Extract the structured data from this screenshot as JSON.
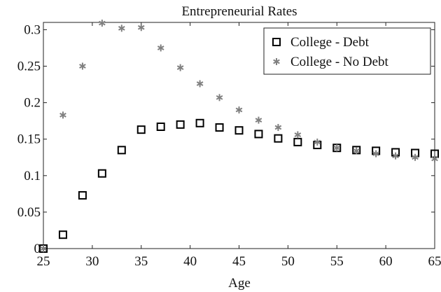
{
  "chart_data": {
    "type": "scatter",
    "title": "Entrepreneurial Rates",
    "xlabel": "Age",
    "ylabel": "",
    "xlim": [
      25,
      65
    ],
    "ylim": [
      0,
      0.31
    ],
    "xticks": [
      "25",
      "30",
      "35",
      "40",
      "45",
      "50",
      "55",
      "60",
      "65"
    ],
    "yticks": [
      "0",
      "0.05",
      "0.1",
      "0.15",
      "0.2",
      "0.25",
      "0.3"
    ],
    "legend_position": "top-right",
    "grid": false,
    "series": [
      {
        "name": "College - Debt",
        "marker": "square",
        "color": "#000000",
        "x": [
          25,
          27,
          29,
          31,
          33,
          35,
          37,
          39,
          41,
          43,
          45,
          47,
          49,
          51,
          53,
          55,
          57,
          59,
          61,
          63,
          65
        ],
        "y": [
          0.0,
          0.019,
          0.073,
          0.103,
          0.135,
          0.163,
          0.167,
          0.17,
          0.172,
          0.166,
          0.162,
          0.157,
          0.151,
          0.146,
          0.142,
          0.138,
          0.135,
          0.134,
          0.132,
          0.131,
          0.13
        ]
      },
      {
        "name": "College - No Debt",
        "marker": "asterisk",
        "color": "#808080",
        "x": [
          25,
          27,
          29,
          31,
          33,
          35,
          37,
          39,
          41,
          43,
          45,
          47,
          49,
          51,
          53,
          55,
          57,
          59,
          61,
          63,
          65
        ],
        "y": [
          0.0,
          0.183,
          0.25,
          0.309,
          0.302,
          0.303,
          0.275,
          0.248,
          0.226,
          0.207,
          0.19,
          0.176,
          0.166,
          0.156,
          0.146,
          0.138,
          0.134,
          0.13,
          0.127,
          0.125,
          0.123
        ]
      }
    ]
  }
}
